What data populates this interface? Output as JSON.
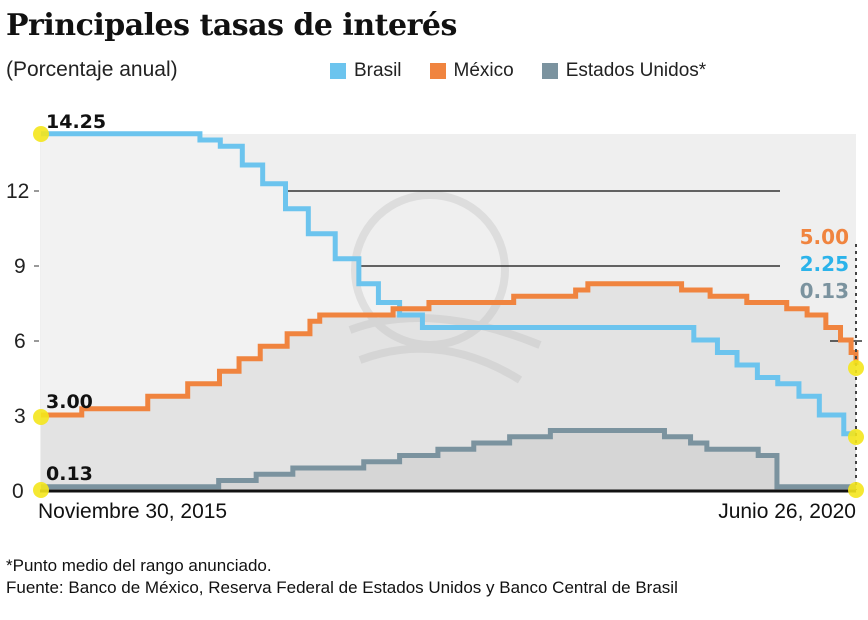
{
  "title": "Principales tasas de interés",
  "subtitle": "(Porcentaje anual)",
  "legend": [
    {
      "label": "Brasil",
      "color": "#6cc4ee"
    },
    {
      "label": "México",
      "color": "#f0843f"
    },
    {
      "label": "Estados Unidos*",
      "color": "#7b939f"
    }
  ],
  "x_labels": {
    "start": "Noviembre 30, 2015",
    "end": "Junio 26, 2020"
  },
  "start_labels": {
    "brasil": "14.25",
    "mexico": "3.00",
    "eeuu": "0.13"
  },
  "end_labels": {
    "mexico": "5.00",
    "brasil": "2.25",
    "eeuu": "0.13"
  },
  "footnotes": {
    "note": "*Punto medio del rango anunciado.",
    "source": "Fuente: Banco de México, Reserva Federal de Estados Unidos y Banco Central de Brasil"
  },
  "chart_data": {
    "type": "line",
    "title": "Principales tasas de interés",
    "subtitle": "(Porcentaje anual)",
    "xlabel": "",
    "ylabel": "Porcentaje anual",
    "ylim": [
      0,
      14.25
    ],
    "yticks": [
      0,
      3,
      6,
      9,
      12
    ],
    "x_range": [
      "Noviembre 30, 2015",
      "Junio 26, 2020"
    ],
    "legend_position": "top",
    "grid": "partial horizontal lines at 9 and 12",
    "step": true,
    "x_normalized_note": "x is fraction of time span from Nov 30 2015 (0) to Jun 26 2020 (1)",
    "series": [
      {
        "name": "Brasil",
        "color": "#6cc4ee",
        "points": [
          [
            0,
            14.25
          ],
          [
            0.195,
            14.0
          ],
          [
            0.22,
            13.75
          ],
          [
            0.247,
            13.0
          ],
          [
            0.272,
            12.25
          ],
          [
            0.3,
            11.25
          ],
          [
            0.328,
            10.25
          ],
          [
            0.361,
            9.25
          ],
          [
            0.39,
            8.25
          ],
          [
            0.414,
            7.5
          ],
          [
            0.44,
            7.0
          ],
          [
            0.468,
            6.5
          ],
          [
            0.801,
            6.0
          ],
          [
            0.83,
            5.5
          ],
          [
            0.854,
            5.0
          ],
          [
            0.879,
            4.5
          ],
          [
            0.904,
            4.25
          ],
          [
            0.93,
            3.75
          ],
          [
            0.955,
            3.0
          ],
          [
            0.985,
            2.25
          ],
          [
            1,
            2.25
          ]
        ],
        "start_value": 14.25,
        "end_value": 2.25
      },
      {
        "name": "México",
        "color": "#f0843f",
        "points": [
          [
            0,
            3.0
          ],
          [
            0.05,
            3.25
          ],
          [
            0.131,
            3.75
          ],
          [
            0.18,
            4.25
          ],
          [
            0.219,
            4.75
          ],
          [
            0.243,
            5.25
          ],
          [
            0.269,
            5.75
          ],
          [
            0.302,
            6.25
          ],
          [
            0.33,
            6.75
          ],
          [
            0.342,
            7.0
          ],
          [
            0.432,
            7.25
          ],
          [
            0.476,
            7.5
          ],
          [
            0.58,
            7.75
          ],
          [
            0.656,
            8.0
          ],
          [
            0.671,
            8.25
          ],
          [
            0.786,
            8.0
          ],
          [
            0.821,
            7.75
          ],
          [
            0.866,
            7.5
          ],
          [
            0.915,
            7.25
          ],
          [
            0.94,
            7.0
          ],
          [
            0.963,
            6.5
          ],
          [
            0.981,
            6.0
          ],
          [
            0.994,
            5.5
          ],
          [
            1,
            5.0
          ]
        ],
        "start_value": 3.0,
        "end_value": 5.0
      },
      {
        "name": "Estados Unidos*",
        "color": "#7b939f",
        "points": [
          [
            0,
            0.13
          ],
          [
            0.218,
            0.38
          ],
          [
            0.264,
            0.63
          ],
          [
            0.309,
            0.88
          ],
          [
            0.396,
            1.13
          ],
          [
            0.44,
            1.38
          ],
          [
            0.487,
            1.63
          ],
          [
            0.531,
            1.88
          ],
          [
            0.575,
            2.13
          ],
          [
            0.625,
            2.38
          ],
          [
            0.765,
            2.13
          ],
          [
            0.797,
            1.88
          ],
          [
            0.817,
            1.63
          ],
          [
            0.88,
            1.38
          ],
          [
            0.903,
            0.13
          ],
          [
            1,
            0.13
          ]
        ],
        "start_value": 0.13,
        "end_value": 0.13
      }
    ]
  }
}
